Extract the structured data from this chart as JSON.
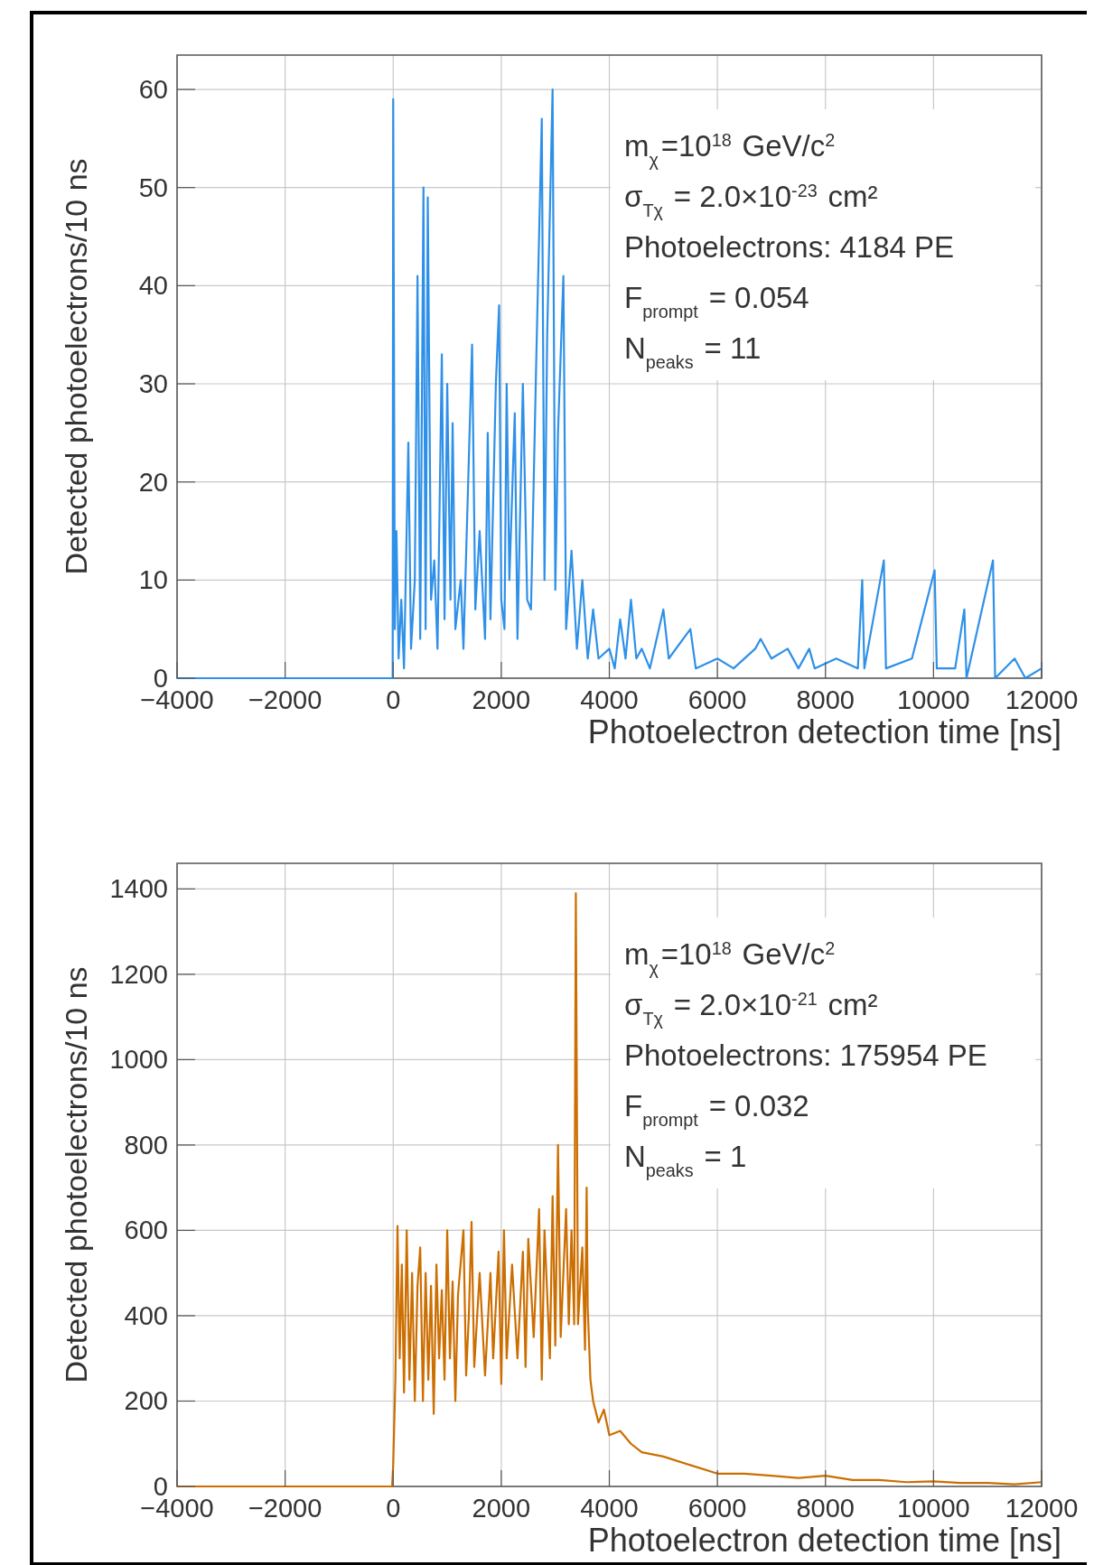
{
  "chart_data": [
    {
      "type": "line",
      "xlabel": "Photoelectron detection time [ns]",
      "ylabel": "Detected photoelectrons/10 ns",
      "xlim": [
        -4000,
        12000
      ],
      "xticks": [
        -4000,
        -2000,
        0,
        2000,
        4000,
        6000,
        8000,
        10000,
        12000
      ],
      "ylim": [
        0,
        63.5
      ],
      "yticks": [
        0,
        10,
        20,
        30,
        40,
        50,
        60
      ],
      "grid": true,
      "marker": "none",
      "line_style": "solid",
      "annotations": [
        "m$_{χ}$=10$^{18}$ GeV/c$^{2}$",
        "σ$_{Tχ}$ = 2.0×10$^{-23}$ cm²",
        "Photoelectrons: 4184 PE",
        "F$_{prompt}$ = 0.054",
        "N$_{peaks}$ = 11"
      ],
      "series": [
        {
          "color": "#2e90e8",
          "x": [
            -4000,
            -10,
            0,
            30,
            60,
            100,
            150,
            200,
            280,
            330,
            400,
            450,
            500,
            560,
            600,
            640,
            700,
            760,
            820,
            900,
            950,
            1000,
            1060,
            1100,
            1150,
            1250,
            1300,
            1460,
            1520,
            1600,
            1700,
            1750,
            1800,
            1900,
            1960,
            2000,
            2060,
            2100,
            2150,
            2250,
            2300,
            2400,
            2480,
            2550,
            2650,
            2750,
            2800,
            2850,
            2950,
            3000,
            3050,
            3150,
            3200,
            3300,
            3400,
            3500,
            3600,
            3700,
            3800,
            4000,
            4100,
            4200,
            4300,
            4400,
            4500,
            4600,
            4750,
            5000,
            5100,
            5500,
            5600,
            6000,
            6300,
            6700,
            6800,
            7000,
            7300,
            7500,
            7700,
            7800,
            8200,
            8600,
            8680,
            8720,
            9080,
            9120,
            9600,
            10020,
            10060,
            10400,
            10570,
            10610,
            11100,
            11140,
            11500,
            11700,
            12000
          ],
          "values": [
            0,
            0,
            59,
            5,
            15,
            2,
            8,
            1,
            24,
            3,
            10,
            41,
            4,
            50,
            5,
            49,
            8,
            12,
            3,
            33,
            6,
            30,
            8,
            26,
            5,
            10,
            3,
            34,
            7,
            15,
            4,
            25,
            6,
            30,
            38,
            8,
            5,
            30,
            10,
            27,
            4,
            30,
            8,
            7,
            33,
            57,
            10,
            35,
            60,
            9,
            25,
            41,
            5,
            13,
            3,
            10,
            2,
            7,
            2,
            3,
            1,
            6,
            2,
            8,
            2,
            3,
            1,
            7,
            2,
            5,
            1,
            2,
            1,
            3,
            4,
            2,
            3,
            1,
            3,
            1,
            2,
            1,
            10,
            1,
            12,
            1,
            2,
            11,
            1,
            1,
            7,
            0,
            12,
            0,
            2,
            0,
            1
          ]
        }
      ]
    },
    {
      "type": "line",
      "xlabel": "Photoelectron detection time [ns]",
      "ylabel": "Detected photoelectrons/10 ns",
      "xlim": [
        -4000,
        12000
      ],
      "xticks": [
        -4000,
        -2000,
        0,
        2000,
        4000,
        6000,
        8000,
        10000,
        12000
      ],
      "ylim": [
        0,
        1460
      ],
      "yticks": [
        0,
        200,
        400,
        600,
        800,
        1000,
        1200,
        1400
      ],
      "grid": true,
      "marker": "none",
      "line_style": "solid",
      "annotations": [
        "m$_{χ}$=10$^{18}$ GeV/c$^{2}$",
        "σ$_{Tχ}$ = 2.0×10$^{-21}$ cm²",
        "Photoelectrons: 175954 PE",
        "F$_{prompt}$ = 0.032",
        "N$_{peaks}$ = 1"
      ],
      "series": [
        {
          "color": "#cc6e00",
          "x": [
            -4000,
            -20,
            0,
            40,
            80,
            120,
            160,
            200,
            250,
            300,
            350,
            400,
            450,
            500,
            550,
            600,
            650,
            700,
            750,
            800,
            850,
            900,
            950,
            1000,
            1050,
            1100,
            1150,
            1200,
            1300,
            1350,
            1400,
            1450,
            1500,
            1600,
            1700,
            1800,
            1850,
            1950,
            2000,
            2050,
            2100,
            2200,
            2300,
            2400,
            2450,
            2500,
            2600,
            2700,
            2750,
            2800,
            2900,
            2950,
            3000,
            3050,
            3100,
            3200,
            3250,
            3300,
            3350,
            3380,
            3420,
            3500,
            3550,
            3580,
            3600,
            3650,
            3700,
            3800,
            3900,
            4000,
            4200,
            4400,
            4600,
            5000,
            5500,
            6000,
            6500,
            7000,
            7500,
            8000,
            8500,
            9000,
            9500,
            10000,
            10500,
            11000,
            11500,
            12000
          ],
          "values": [
            0,
            0,
            50,
            250,
            610,
            300,
            520,
            220,
            600,
            250,
            500,
            200,
            470,
            560,
            200,
            500,
            250,
            470,
            170,
            520,
            300,
            460,
            250,
            600,
            300,
            480,
            200,
            450,
            600,
            260,
            400,
            620,
            280,
            500,
            260,
            500,
            300,
            550,
            240,
            600,
            300,
            520,
            300,
            550,
            280,
            580,
            350,
            650,
            250,
            600,
            300,
            680,
            330,
            800,
            350,
            650,
            380,
            600,
            380,
            1390,
            380,
            560,
            320,
            700,
            420,
            250,
            200,
            150,
            180,
            120,
            130,
            100,
            80,
            70,
            50,
            30,
            30,
            25,
            20,
            25,
            15,
            15,
            10,
            12,
            8,
            8,
            5,
            10
          ]
        }
      ]
    }
  ]
}
